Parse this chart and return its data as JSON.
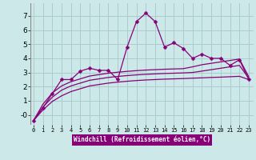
{
  "xlabel": "Windchill (Refroidissement éolien,°C)",
  "background_color": "#cce8e8",
  "grid_color": "#aacccc",
  "line_color": "#880077",
  "x_ticks": [
    0,
    1,
    2,
    3,
    4,
    5,
    6,
    7,
    8,
    9,
    10,
    11,
    12,
    13,
    14,
    15,
    16,
    17,
    18,
    19,
    20,
    21,
    22,
    23
  ],
  "y_ticks": [
    0,
    1,
    2,
    3,
    4,
    5,
    6,
    7
  ],
  "y_tick_labels": [
    "-0",
    "1",
    "2",
    "3",
    "4",
    "5",
    "6",
    "7"
  ],
  "xlim": [
    -0.3,
    23.5
  ],
  "ylim": [
    -0.7,
    7.9
  ],
  "series1_x": [
    0,
    1,
    2,
    3,
    4,
    5,
    6,
    7,
    8,
    9,
    10,
    11,
    12,
    13,
    14,
    15,
    16,
    17,
    18,
    19,
    20,
    21,
    22,
    23
  ],
  "series1_y": [
    -0.4,
    0.5,
    1.5,
    2.5,
    2.5,
    3.1,
    3.3,
    3.15,
    3.15,
    2.5,
    4.8,
    6.6,
    7.2,
    6.6,
    4.8,
    5.1,
    4.7,
    4.0,
    4.3,
    4.0,
    4.0,
    3.5,
    3.9,
    2.5
  ],
  "series2_x": [
    0,
    1,
    2,
    3,
    4,
    5,
    6,
    7,
    8,
    9,
    10,
    11,
    12,
    13,
    14,
    15,
    16,
    17,
    18,
    19,
    20,
    21,
    22,
    23
  ],
  "series2_y": [
    -0.4,
    0.35,
    0.95,
    1.35,
    1.65,
    1.85,
    2.05,
    2.15,
    2.25,
    2.32,
    2.38,
    2.43,
    2.47,
    2.5,
    2.53,
    2.55,
    2.57,
    2.6,
    2.62,
    2.65,
    2.67,
    2.7,
    2.73,
    2.5
  ],
  "series3_x": [
    0,
    1,
    2,
    3,
    4,
    5,
    6,
    7,
    8,
    9,
    10,
    11,
    12,
    13,
    14,
    15,
    16,
    17,
    18,
    19,
    20,
    21,
    22,
    23
  ],
  "series3_y": [
    -0.4,
    0.55,
    1.25,
    1.75,
    2.05,
    2.25,
    2.45,
    2.55,
    2.65,
    2.72,
    2.78,
    2.83,
    2.87,
    2.9,
    2.93,
    2.95,
    2.97,
    3.0,
    3.1,
    3.2,
    3.3,
    3.4,
    3.5,
    2.6
  ],
  "series4_x": [
    0,
    1,
    2,
    3,
    4,
    5,
    6,
    7,
    8,
    9,
    10,
    11,
    12,
    13,
    14,
    15,
    16,
    17,
    18,
    19,
    20,
    21,
    22,
    23
  ],
  "series4_y": [
    -0.4,
    0.75,
    1.55,
    2.05,
    2.35,
    2.55,
    2.75,
    2.85,
    2.95,
    3.02,
    3.08,
    3.13,
    3.17,
    3.2,
    3.23,
    3.25,
    3.27,
    3.4,
    3.55,
    3.65,
    3.75,
    3.85,
    3.95,
    2.7
  ]
}
